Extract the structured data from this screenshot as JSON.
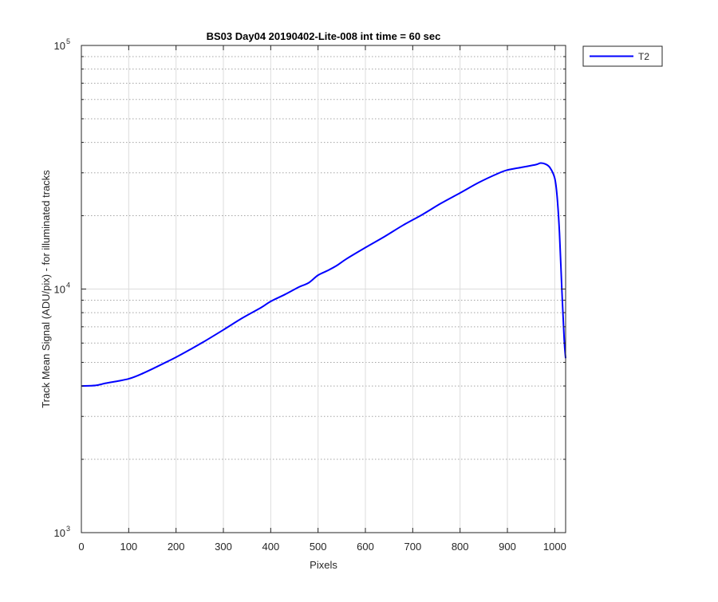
{
  "chart_data": {
    "type": "line",
    "title": "BS03 Day04 20190402-Lite-008 int time = 60 sec",
    "xlabel": "Pixels",
    "ylabel": "Track Mean Signal (ADU/pix) - for illuminated tracks",
    "xlim": [
      0,
      1023
    ],
    "ylim": [
      1000,
      100000
    ],
    "yscale": "log",
    "grid": true,
    "minor_grid": true,
    "legend_position": "outside-top-right",
    "x_ticks": [
      0,
      100,
      200,
      300,
      400,
      500,
      600,
      700,
      800,
      900,
      1000
    ],
    "x_tick_labels": [
      "0",
      "100",
      "200",
      "300",
      "400",
      "500",
      "600",
      "700",
      "800",
      "900",
      "1000"
    ],
    "y_ticks": [
      1000,
      10000,
      100000
    ],
    "y_tick_base": "10",
    "y_tick_exponents": [
      "3",
      "4",
      "5"
    ],
    "series": [
      {
        "name": "T2",
        "color": "#0000ff",
        "x": [
          0,
          30,
          50,
          80,
          100,
          120,
          150,
          180,
          200,
          230,
          260,
          300,
          340,
          380,
          400,
          430,
          460,
          480,
          500,
          520,
          540,
          560,
          600,
          640,
          680,
          720,
          760,
          800,
          840,
          880,
          900,
          930,
          960,
          970,
          980,
          990,
          1000,
          1005,
          1010,
          1015,
          1020,
          1023
        ],
        "y": [
          4000,
          4020,
          4100,
          4200,
          4280,
          4420,
          4700,
          5020,
          5250,
          5650,
          6100,
          6800,
          7600,
          8400,
          8900,
          9500,
          10200,
          10600,
          11400,
          11900,
          12500,
          13300,
          14800,
          16400,
          18300,
          20200,
          22500,
          24800,
          27400,
          29800,
          30800,
          31600,
          32400,
          32900,
          32600,
          31500,
          28500,
          24000,
          17000,
          10000,
          6200,
          5200
        ]
      }
    ]
  }
}
